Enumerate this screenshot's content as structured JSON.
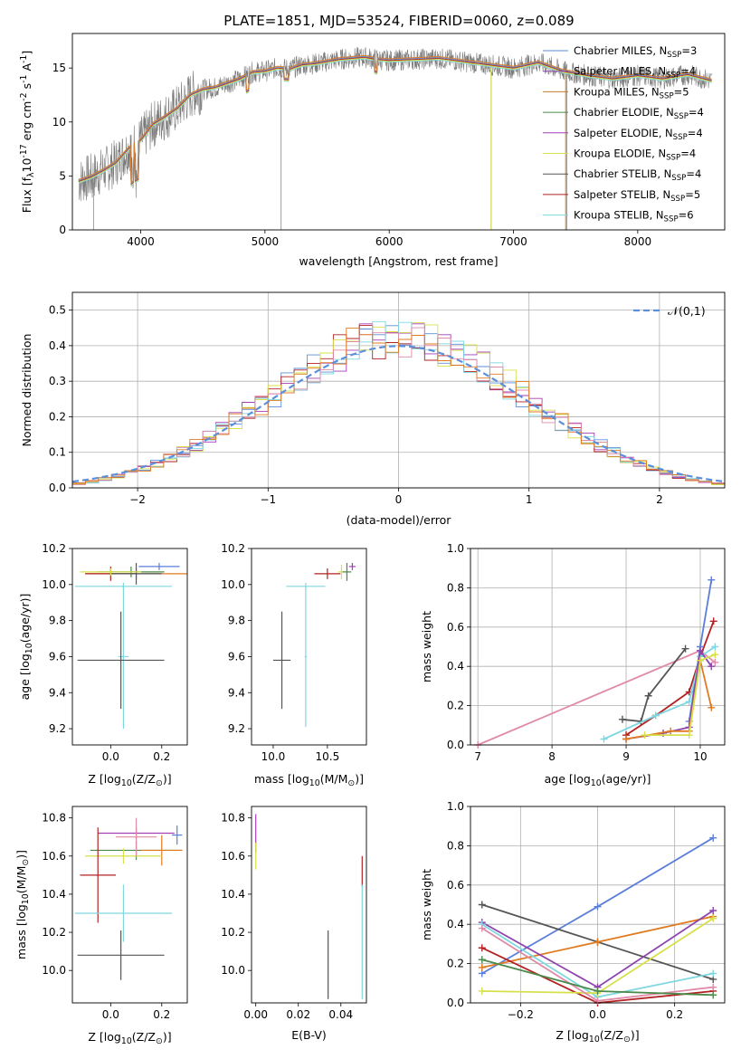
{
  "figure_title": "PLATE=1851, MJD=53524, FIBERID=0060, z=0.089",
  "colors": {
    "Chabrier MILES": "#5b8fd9",
    "Salpeter MILES": "#8e44ad",
    "Kroupa MILES": "#c07c2a",
    "Chabrier ELODIE": "#4a8a4a",
    "Salpeter ELODIE": "#a43fb8",
    "Kroupa ELODIE": "#d6e04a",
    "Chabrier STELIB": "#555555",
    "Salpeter STELIB": "#b22222",
    "Kroupa STELIB": "#7fd8e0",
    "extra_orange": "#e07b20",
    "extra_pink": "#e08aa8",
    "extra_blue": "#5b7fd9"
  },
  "chart_data": [
    {
      "id": "spectrum",
      "type": "line",
      "title": "PLATE=1851, MJD=53524, FIBERID=0060, z=0.089",
      "xlabel": "wavelength [Angstrom, rest frame]",
      "ylabel": "Flux [f$_\\lambda$10$^{-17}$ erg cm$^{-2}$ s$^{-1}$ A$^{-1}$]",
      "xlim": [
        3450,
        8700
      ],
      "ylim": [
        0,
        18.2
      ],
      "xticks": [
        4000,
        5000,
        6000,
        7000,
        8000
      ],
      "yticks": [
        0,
        5,
        10,
        15
      ],
      "grid": false,
      "legend": "top-right",
      "envelope": [
        [
          3500,
          4.5
        ],
        [
          3600,
          4.9
        ],
        [
          3700,
          5.5
        ],
        [
          3800,
          6.2
        ],
        [
          3900,
          7.5
        ],
        [
          3950,
          8.0
        ],
        [
          4000,
          8.3
        ],
        [
          4100,
          9.8
        ],
        [
          4200,
          10.5
        ],
        [
          4300,
          11.3
        ],
        [
          4400,
          12.5
        ],
        [
          4500,
          13.0
        ],
        [
          4600,
          13.2
        ],
        [
          4700,
          13.6
        ],
        [
          4800,
          14.0
        ],
        [
          4900,
          14.6
        ],
        [
          5000,
          14.7
        ],
        [
          5100,
          15.0
        ],
        [
          5200,
          14.9
        ],
        [
          5300,
          15.3
        ],
        [
          5400,
          15.4
        ],
        [
          5500,
          15.6
        ],
        [
          5600,
          15.8
        ],
        [
          5700,
          15.9
        ],
        [
          5800,
          16.0
        ],
        [
          5900,
          15.8
        ],
        [
          6000,
          15.7
        ],
        [
          6200,
          15.8
        ],
        [
          6400,
          15.9
        ],
        [
          6600,
          15.6
        ],
        [
          6800,
          15.3
        ],
        [
          7000,
          15.0
        ],
        [
          7200,
          15.5
        ],
        [
          7400,
          14.7
        ],
        [
          7600,
          14.3
        ],
        [
          7800,
          14.0
        ],
        [
          8000,
          14.3
        ],
        [
          8200,
          14.0
        ],
        [
          8400,
          14.4
        ],
        [
          8600,
          13.8
        ]
      ],
      "series": [
        {
          "name": "Chabrier MILES, N$_{SSP}$=3"
        },
        {
          "name": "Salpeter MILES, N$_{SSP}$=4"
        },
        {
          "name": "Kroupa MILES, N$_{SSP}$=5"
        },
        {
          "name": "Chabrier ELODIE, N$_{SSP}$=4"
        },
        {
          "name": "Salpeter ELODIE, N$_{SSP}$=4"
        },
        {
          "name": "Kroupa ELODIE, N$_{SSP}$=4"
        },
        {
          "name": "Chabrier STELIB, N$_{SSP}$=4"
        },
        {
          "name": "Salpeter STELIB, N$_{SSP}$=5"
        },
        {
          "name": "Kroupa STELIB, N$_{SSP}$=6"
        }
      ]
    },
    {
      "id": "residuals",
      "type": "bar",
      "xlabel": "(data-model)/error",
      "ylabel": "Normed distribution",
      "xlim": [
        -2.5,
        2.5
      ],
      "ylim": [
        0,
        0.55
      ],
      "xticks": [
        -2,
        -1,
        0,
        1,
        2
      ],
      "yticks": [
        0.0,
        0.1,
        0.2,
        0.3,
        0.4,
        0.5
      ],
      "grid": true,
      "legend": "top-right",
      "reference_label": "$\\mathcal{N}(0,1)$",
      "bin_width": 0.1
    },
    {
      "id": "age_vs_Z",
      "type": "scatter",
      "xlabel": "Z [log$_{10}$($Z/Z_\\odot$)]",
      "ylabel": "age  [log$_{10}$($age/yr$)]",
      "xlim": [
        -0.15,
        0.3
      ],
      "ylim": [
        9.11,
        10.2
      ],
      "xticks": [
        0.0,
        0.2
      ],
      "yticks": [
        9.2,
        9.4,
        9.6,
        9.8,
        10.0,
        10.2
      ],
      "points": [
        {
          "x": 0.19,
          "y": 10.1,
          "xerr": 0.08,
          "yerr": 0.02,
          "c": "#5b7fd9"
        },
        {
          "x": 0.08,
          "y": 10.07,
          "xerr": 0.13,
          "yerr": 0.03,
          "c": "#4a8a4a"
        },
        {
          "x": 0.1,
          "y": 10.06,
          "xerr": 0.2,
          "yerr": 0.03,
          "c": "#e07b20"
        },
        {
          "x": 0.0,
          "y": 10.06,
          "xerr": 0.1,
          "yerr": 0.04,
          "c": "#b22222"
        },
        {
          "x": 0.1,
          "y": 10.06,
          "xerr": 0.1,
          "yerr": 0.06,
          "c": "#555555"
        },
        {
          "x": 0.0,
          "y": 10.07,
          "xerr": 0.12,
          "yerr": 0.02,
          "c": "#d6e04a"
        },
        {
          "x": 0.05,
          "y": 9.99,
          "xerr": 0.19,
          "yerr": 0.02,
          "c": "#7fd8e0"
        },
        {
          "x": 0.05,
          "y": 9.6,
          "xerr": 0.02,
          "yerr": 0.4,
          "c": "#7fd8e0"
        },
        {
          "x": 0.04,
          "y": 9.58,
          "xerr": 0.17,
          "yerr": 0.27,
          "c": "#555555"
        }
      ]
    },
    {
      "id": "age_vs_mass",
      "type": "scatter",
      "xlabel": "mass [log$_{10}$($M/M_\\odot$)]",
      "ylabel": "",
      "xlim": [
        9.8,
        10.86
      ],
      "ylim": [
        9.11,
        10.2
      ],
      "xticks": [
        10.0,
        10.5
      ],
      "yticks": [
        9.2,
        9.4,
        9.6,
        9.8,
        10.0,
        10.2
      ],
      "points": [
        {
          "x": 10.73,
          "y": 10.1,
          "xerr": 0.03,
          "yerr": 0.02,
          "c": "#a43fb8"
        },
        {
          "x": 10.63,
          "y": 10.07,
          "xerr": 0.03,
          "yerr": 0.04,
          "c": "#d6e04a"
        },
        {
          "x": 10.5,
          "y": 10.06,
          "xerr": 0.12,
          "yerr": 0.03,
          "c": "#b22222"
        },
        {
          "x": 10.68,
          "y": 10.07,
          "xerr": 0.04,
          "yerr": 0.05,
          "c": "#4a8a4a"
        },
        {
          "x": 10.3,
          "y": 9.99,
          "xerr": 0.18,
          "yerr": 0.02,
          "c": "#7fd8e0"
        },
        {
          "x": 10.3,
          "y": 9.6,
          "xerr": 0.01,
          "yerr": 0.39,
          "c": "#7fd8e0"
        },
        {
          "x": 10.08,
          "y": 9.58,
          "xerr": 0.08,
          "yerr": 0.27,
          "c": "#555555"
        }
      ]
    },
    {
      "id": "massweight_vs_age",
      "type": "line",
      "xlabel": "age  [log$_{10}$($age/yr$)]",
      "ylabel": "mass weight",
      "xlim": [
        6.9,
        10.33
      ],
      "ylim": [
        0,
        1.0
      ],
      "xticks": [
        7,
        8,
        9,
        10
      ],
      "yticks": [
        0.0,
        0.2,
        0.4,
        0.6,
        0.8,
        1.0
      ],
      "grid": true,
      "series": [
        {
          "c": "#e08aa8",
          "x": [
            7.0,
            10.0,
            10.2
          ],
          "y": [
            0.0,
            0.48,
            0.42
          ]
        },
        {
          "c": "#555555",
          "x": [
            8.95,
            9.2,
            9.3,
            9.8
          ],
          "y": [
            0.13,
            0.12,
            0.25,
            0.49
          ]
        },
        {
          "c": "#b22222",
          "x": [
            9.0,
            9.4,
            9.85,
            10.0,
            10.18
          ],
          "y": [
            0.05,
            0.15,
            0.27,
            0.45,
            0.63
          ]
        },
        {
          "c": "#5b7fd9",
          "x": [
            9.85,
            10.0,
            10.15
          ],
          "y": [
            0.12,
            0.5,
            0.84
          ]
        },
        {
          "c": "#7fd8e0",
          "x": [
            8.7,
            9.4,
            9.85,
            10.0,
            10.2
          ],
          "y": [
            0.03,
            0.15,
            0.22,
            0.45,
            0.5
          ]
        },
        {
          "c": "#8e44ad",
          "x": [
            9.0,
            9.5,
            9.85,
            10.0,
            10.15
          ],
          "y": [
            0.03,
            0.06,
            0.09,
            0.48,
            0.4
          ]
        },
        {
          "c": "#e07b20",
          "x": [
            9.0,
            9.6,
            9.85,
            10.0,
            10.15
          ],
          "y": [
            0.03,
            0.07,
            0.07,
            0.43,
            0.19
          ]
        },
        {
          "c": "#d6e04a",
          "x": [
            9.25,
            9.85,
            10.0,
            10.2
          ],
          "y": [
            0.05,
            0.05,
            0.43,
            0.46
          ]
        }
      ]
    },
    {
      "id": "mass_vs_Z",
      "type": "scatter",
      "xlabel": "Z [log$_{10}$($Z/Z_\\odot$)]",
      "ylabel": "mass [log$_{10}$($M/M_\\odot$)]",
      "xlim": [
        -0.15,
        0.3
      ],
      "ylim": [
        9.83,
        10.86
      ],
      "xticks": [
        0.0,
        0.2
      ],
      "yticks": [
        10.0,
        10.2,
        10.4,
        10.6,
        10.8
      ],
      "points": [
        {
          "x": 0.26,
          "y": 10.71,
          "xerr": 0.02,
          "yerr": 0.05,
          "c": "#5b7fd9"
        },
        {
          "x": 0.1,
          "y": 10.72,
          "xerr": 0.15,
          "yerr": 0.03,
          "c": "#a43fb8"
        },
        {
          "x": 0.1,
          "y": 10.63,
          "xerr": 0.18,
          "yerr": 0.05,
          "c": "#4a8a4a"
        },
        {
          "x": 0.2,
          "y": 10.63,
          "xerr": 0.08,
          "yerr": 0.08,
          "c": "#e07b20"
        },
        {
          "x": 0.05,
          "y": 10.6,
          "xerr": 0.15,
          "yerr": 0.04,
          "c": "#d6e04a"
        },
        {
          "x": 0.1,
          "y": 10.7,
          "xerr": 0.08,
          "yerr": 0.1,
          "c": "#e08aa8"
        },
        {
          "x": -0.05,
          "y": 10.5,
          "xerr": 0.07,
          "yerr": 0.25,
          "c": "#b22222"
        },
        {
          "x": 0.05,
          "y": 10.3,
          "xerr": 0.19,
          "yerr": 0.15,
          "c": "#7fd8e0"
        },
        {
          "x": 0.04,
          "y": 10.08,
          "xerr": 0.17,
          "yerr": 0.13,
          "c": "#555555"
        }
      ]
    },
    {
      "id": "mass_vs_EBV",
      "type": "scatter",
      "xlabel": "E(B-V)",
      "ylabel": "",
      "xlim": [
        -0.002,
        0.052
      ],
      "ylim": [
        9.83,
        10.86
      ],
      "xticks": [
        0.0,
        0.02,
        0.04
      ],
      "yticks": [
        10.0,
        10.2,
        10.4,
        10.6,
        10.8
      ],
      "points": [
        {
          "x": 0.0,
          "y": 10.72,
          "xerr": 0.0,
          "yerr": 0.1,
          "c": "#a43fb8"
        },
        {
          "x": 0.0,
          "y": 10.6,
          "xerr": 0.0,
          "yerr": 0.07,
          "c": "#d6e04a"
        },
        {
          "x": 0.05,
          "y": 10.52,
          "xerr": 0.0,
          "yerr": 0.08,
          "c": "#b22222"
        },
        {
          "x": 0.05,
          "y": 10.15,
          "xerr": 0.0,
          "yerr": 0.3,
          "c": "#7fd8e0"
        },
        {
          "x": 0.034,
          "y": 10.03,
          "xerr": 0.0,
          "yerr": 0.18,
          "c": "#555555"
        }
      ]
    },
    {
      "id": "massweight_vs_Z",
      "type": "line",
      "xlabel": "Z [log$_{10}$($Z/Z_\\odot$)]",
      "ylabel": "mass weight",
      "xlim": [
        -0.33,
        0.33
      ],
      "ylim": [
        0,
        1.0
      ],
      "xticks": [
        -0.2,
        0.0,
        0.2
      ],
      "yticks": [
        0.0,
        0.2,
        0.4,
        0.6,
        0.8,
        1.0
      ],
      "grid": true,
      "series": [
        {
          "c": "#5b7fd9",
          "x": [
            -0.3,
            0.0,
            0.3
          ],
          "y": [
            0.15,
            0.49,
            0.84
          ]
        },
        {
          "c": "#555555",
          "x": [
            -0.3,
            0.0,
            0.3
          ],
          "y": [
            0.5,
            0.31,
            0.12
          ]
        },
        {
          "c": "#e07b20",
          "x": [
            -0.3,
            0.0,
            0.3
          ],
          "y": [
            0.18,
            0.31,
            0.44
          ]
        },
        {
          "c": "#8e44ad",
          "x": [
            -0.3,
            0.0,
            0.3
          ],
          "y": [
            0.41,
            0.08,
            0.47
          ]
        },
        {
          "c": "#7fd8e0",
          "x": [
            -0.3,
            0.0,
            0.3
          ],
          "y": [
            0.4,
            0.03,
            0.15
          ]
        },
        {
          "c": "#b22222",
          "x": [
            -0.3,
            0.0,
            0.3
          ],
          "y": [
            0.28,
            0.0,
            0.06
          ]
        },
        {
          "c": "#d6e04a",
          "x": [
            -0.3,
            0.0,
            0.3
          ],
          "y": [
            0.06,
            0.05,
            0.43
          ]
        },
        {
          "c": "#e08aa8",
          "x": [
            -0.3,
            0.0,
            0.3
          ],
          "y": [
            0.38,
            0.01,
            0.08
          ]
        },
        {
          "c": "#4a8a4a",
          "x": [
            -0.3,
            0.0,
            0.3
          ],
          "y": [
            0.22,
            0.06,
            0.04
          ]
        }
      ]
    }
  ]
}
